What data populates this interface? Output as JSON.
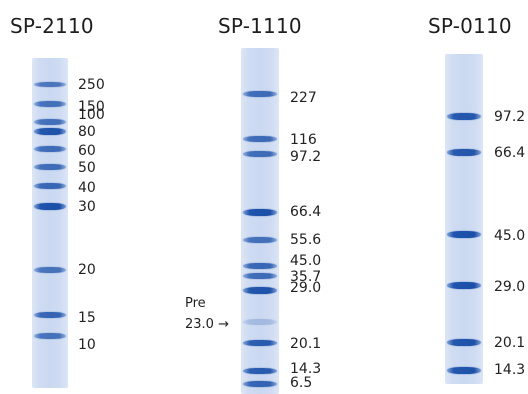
{
  "gels": [
    {
      "name": "SP-2110",
      "markers": [
        "250",
        "150",
        "100",
        "80",
        "60",
        "50",
        "40",
        "30",
        "20",
        "15",
        "10"
      ],
      "band_strength": [
        0.45,
        0.55,
        0.55,
        0.9,
        0.6,
        0.6,
        0.65,
        0.95,
        0.5,
        0.7,
        0.5
      ]
    },
    {
      "name": "SP-1110",
      "markers": [
        "227",
        "116",
        "97.2",
        "66.4",
        "55.6",
        "45.0",
        "35.7",
        "29.0",
        "20.1",
        "14.3",
        "6.5"
      ],
      "band_strength": [
        0.6,
        0.6,
        0.6,
        0.95,
        0.55,
        0.65,
        0.6,
        0.9,
        0.8,
        0.8,
        0.7
      ],
      "annotation": {
        "line1": "Pre",
        "line2": "23.0 →"
      }
    },
    {
      "name": "SP-0110",
      "markers": [
        "97.2",
        "66.4",
        "45.0",
        "29.0",
        "20.1",
        "14.3"
      ],
      "band_strength": [
        0.85,
        0.85,
        0.95,
        0.95,
        0.9,
        0.9
      ]
    }
  ]
}
